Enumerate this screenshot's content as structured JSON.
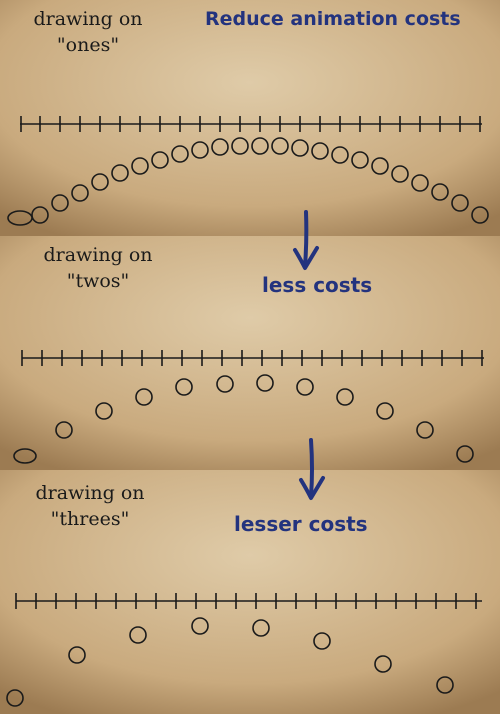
{
  "header": {
    "title": "Reduce animation costs"
  },
  "panels": [
    {
      "label_line1": "drawing on",
      "label_line2": "\"ones\"",
      "caption": ""
    },
    {
      "label_line1": "drawing on",
      "label_line2": "\"twos\"",
      "caption": "less costs"
    },
    {
      "label_line1": "drawing on",
      "label_line2": "\"threes\"",
      "caption": "lesser costs"
    }
  ],
  "colors": {
    "paper_light": "#dcc8a6",
    "paper_dark": "#a8875e",
    "ink": "#1a1a1a",
    "accent": "#23337e"
  },
  "icons": [
    "down-arrow-icon",
    "down-arrow-icon"
  ]
}
